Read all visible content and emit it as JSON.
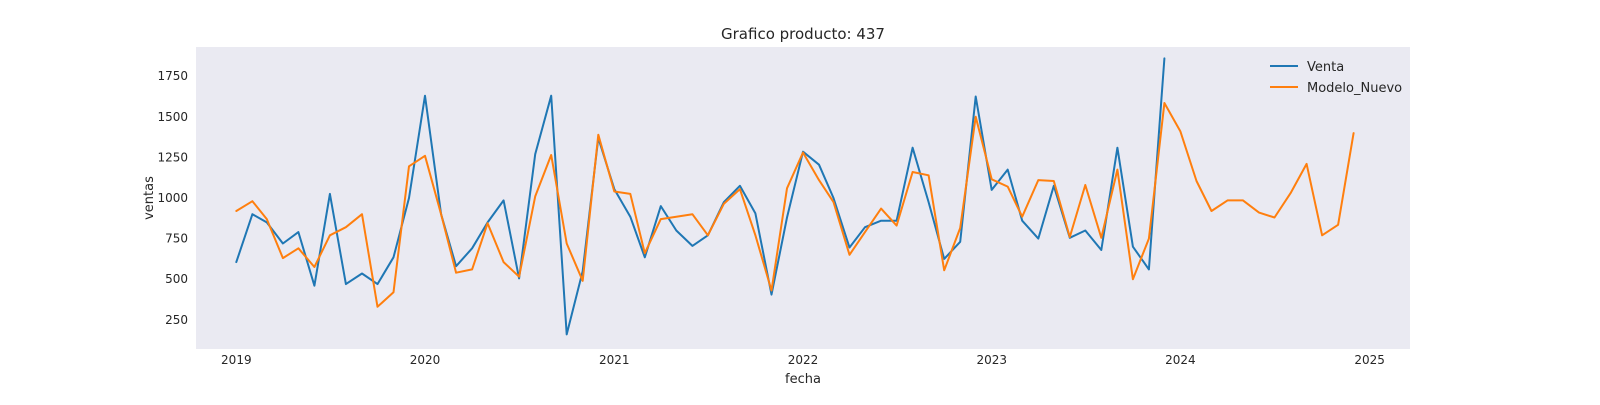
{
  "chart_data": {
    "type": "line",
    "title": "Grafico producto: 437",
    "xlabel": "fecha",
    "ylabel": "ventas",
    "x_ticks": [
      "2019",
      "2020",
      "2021",
      "2022",
      "2023",
      "2024",
      "2025"
    ],
    "y_ticks": [
      "250",
      "500",
      "750",
      "1000",
      "1250",
      "1500",
      "1750"
    ],
    "xlim": [
      "2018-10-15",
      "2025-03-20"
    ],
    "ylim": [
      70,
      1930
    ],
    "grid": false,
    "legend": "top-right",
    "background": "#eaeaf2",
    "series": [
      {
        "name": "Venta",
        "color": "#1f77b4",
        "points": [
          [
            "2019-01-01",
            605
          ],
          [
            "2019-02-01",
            900
          ],
          [
            "2019-03-01",
            850
          ],
          [
            "2019-04-01",
            720
          ],
          [
            "2019-05-01",
            790
          ],
          [
            "2019-06-01",
            460
          ],
          [
            "2019-07-01",
            1025
          ],
          [
            "2019-08-01",
            470
          ],
          [
            "2019-09-01",
            535
          ],
          [
            "2019-10-01",
            470
          ],
          [
            "2019-11-01",
            635
          ],
          [
            "2019-12-01",
            1000
          ],
          [
            "2020-01-01",
            1630
          ],
          [
            "2020-02-01",
            900
          ],
          [
            "2020-03-01",
            580
          ],
          [
            "2020-04-01",
            690
          ],
          [
            "2020-05-01",
            850
          ],
          [
            "2020-06-01",
            985
          ],
          [
            "2020-07-01",
            505
          ],
          [
            "2020-08-01",
            1270
          ],
          [
            "2020-09-01",
            1630
          ],
          [
            "2020-10-01",
            160
          ],
          [
            "2020-11-01",
            550
          ],
          [
            "2020-12-01",
            1370
          ],
          [
            "2021-01-01",
            1055
          ],
          [
            "2021-02-01",
            885
          ],
          [
            "2021-03-01",
            635
          ],
          [
            "2021-04-01",
            950
          ],
          [
            "2021-05-01",
            800
          ],
          [
            "2021-06-01",
            705
          ],
          [
            "2021-07-01",
            770
          ],
          [
            "2021-08-01",
            975
          ],
          [
            "2021-09-01",
            1075
          ],
          [
            "2021-10-01",
            905
          ],
          [
            "2021-11-01",
            405
          ],
          [
            "2021-12-01",
            880
          ],
          [
            "2022-01-01",
            1285
          ],
          [
            "2022-02-01",
            1205
          ],
          [
            "2022-03-01",
            1000
          ],
          [
            "2022-04-01",
            695
          ],
          [
            "2022-05-01",
            820
          ],
          [
            "2022-06-01",
            860
          ],
          [
            "2022-07-01",
            860
          ],
          [
            "2022-08-01",
            1310
          ],
          [
            "2022-09-01",
            975
          ],
          [
            "2022-10-01",
            625
          ],
          [
            "2022-11-01",
            730
          ],
          [
            "2022-12-01",
            1625
          ],
          [
            "2023-01-01",
            1050
          ],
          [
            "2023-02-01",
            1175
          ],
          [
            "2023-03-01",
            860
          ],
          [
            "2023-04-01",
            750
          ],
          [
            "2023-05-01",
            1075
          ],
          [
            "2023-06-01",
            755
          ],
          [
            "2023-07-01",
            800
          ],
          [
            "2023-08-01",
            680
          ],
          [
            "2023-09-01",
            1310
          ],
          [
            "2023-10-01",
            700
          ],
          [
            "2023-11-01",
            560
          ],
          [
            "2023-12-01",
            1860
          ]
        ]
      },
      {
        "name": "Modelo_Nuevo",
        "color": "#ff7f0e",
        "points": [
          [
            "2019-01-01",
            920
          ],
          [
            "2019-02-01",
            980
          ],
          [
            "2019-03-01",
            870
          ],
          [
            "2019-04-01",
            630
          ],
          [
            "2019-05-01",
            690
          ],
          [
            "2019-06-01",
            575
          ],
          [
            "2019-07-01",
            770
          ],
          [
            "2019-08-01",
            820
          ],
          [
            "2019-09-01",
            900
          ],
          [
            "2019-10-01",
            330
          ],
          [
            "2019-11-01",
            420
          ],
          [
            "2019-12-01",
            1195
          ],
          [
            "2020-01-01",
            1260
          ],
          [
            "2020-02-01",
            900
          ],
          [
            "2020-03-01",
            540
          ],
          [
            "2020-04-01",
            560
          ],
          [
            "2020-05-01",
            845
          ],
          [
            "2020-06-01",
            605
          ],
          [
            "2020-07-01",
            515
          ],
          [
            "2020-08-01",
            1010
          ],
          [
            "2020-09-01",
            1265
          ],
          [
            "2020-10-01",
            720
          ],
          [
            "2020-11-01",
            490
          ],
          [
            "2020-12-01",
            1390
          ],
          [
            "2021-01-01",
            1040
          ],
          [
            "2021-02-01",
            1025
          ],
          [
            "2021-03-01",
            660
          ],
          [
            "2021-04-01",
            870
          ],
          [
            "2021-05-01",
            885
          ],
          [
            "2021-06-01",
            900
          ],
          [
            "2021-07-01",
            770
          ],
          [
            "2021-08-01",
            965
          ],
          [
            "2021-09-01",
            1055
          ],
          [
            "2021-10-01",
            770
          ],
          [
            "2021-11-01",
            430
          ],
          [
            "2021-12-01",
            1060
          ],
          [
            "2022-01-01",
            1280
          ],
          [
            "2022-02-01",
            1110
          ],
          [
            "2022-03-01",
            975
          ],
          [
            "2022-04-01",
            650
          ],
          [
            "2022-05-01",
            790
          ],
          [
            "2022-06-01",
            935
          ],
          [
            "2022-07-01",
            830
          ],
          [
            "2022-08-01",
            1160
          ],
          [
            "2022-09-01",
            1140
          ],
          [
            "2022-10-01",
            555
          ],
          [
            "2022-11-01",
            815
          ],
          [
            "2022-12-01",
            1500
          ],
          [
            "2023-01-01",
            1115
          ],
          [
            "2023-02-01",
            1070
          ],
          [
            "2023-03-01",
            885
          ],
          [
            "2023-04-01",
            1110
          ],
          [
            "2023-05-01",
            1105
          ],
          [
            "2023-06-01",
            760
          ],
          [
            "2023-07-01",
            1080
          ],
          [
            "2023-08-01",
            755
          ],
          [
            "2023-09-01",
            1175
          ],
          [
            "2023-10-01",
            500
          ],
          [
            "2023-11-01",
            750
          ],
          [
            "2023-12-01",
            1585
          ],
          [
            "2024-01-01",
            1410
          ],
          [
            "2024-02-01",
            1105
          ],
          [
            "2024-03-01",
            920
          ],
          [
            "2024-04-01",
            985
          ],
          [
            "2024-05-01",
            985
          ],
          [
            "2024-06-01",
            910
          ],
          [
            "2024-07-01",
            880
          ],
          [
            "2024-08-01",
            1030
          ],
          [
            "2024-09-01",
            1210
          ],
          [
            "2024-10-01",
            770
          ],
          [
            "2024-11-01",
            835
          ],
          [
            "2024-12-01",
            1400
          ]
        ]
      }
    ]
  }
}
